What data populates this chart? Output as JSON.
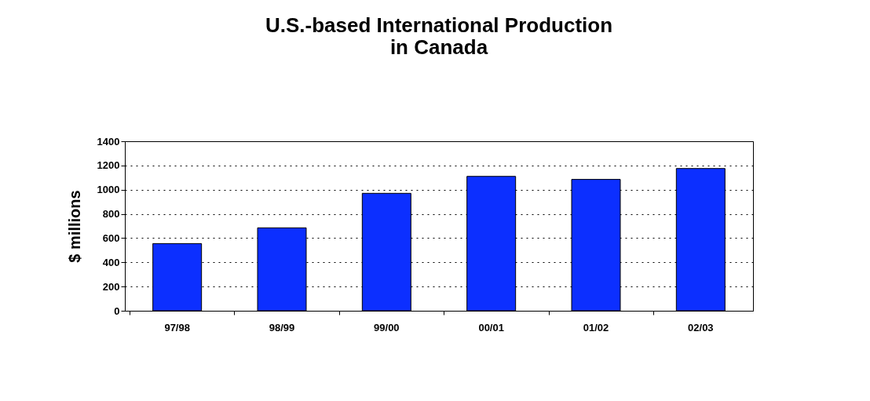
{
  "chart_data": {
    "type": "bar",
    "title": [
      "U.S.-based International Production",
      "in Canada"
    ],
    "ylabel": "$ millions",
    "categories": [
      "97/98",
      "98/99",
      "99/00",
      "00/01",
      "01/02",
      "02/03"
    ],
    "values": [
      555,
      685,
      970,
      1110,
      1085,
      1175
    ],
    "color": "#0c2fff",
    "ylim": [
      0,
      1400
    ],
    "yticks": [
      0,
      200,
      400,
      600,
      800,
      1000,
      1200,
      1400
    ],
    "grid": "y"
  }
}
